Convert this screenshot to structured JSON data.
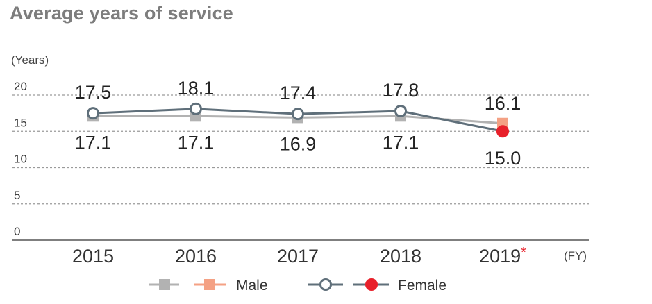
{
  "chart_data": {
    "type": "line",
    "title": "Average years of service",
    "ylabel": "(Years)",
    "xlabel": "(FY)",
    "yticks": [
      "20",
      "15",
      "10",
      "5",
      "0"
    ],
    "ylim": [
      0,
      20
    ],
    "categories": [
      "2015",
      "2016",
      "2017",
      "2018",
      "2019"
    ],
    "footnote_mark": "*",
    "footnote_mark_category": "2019",
    "grid": true,
    "legend_position": "bottom",
    "series": [
      {
        "name": "Male",
        "values": [
          17.1,
          17.1,
          16.9,
          17.1,
          16.1
        ],
        "labels": [
          "17.1",
          "17.1",
          "16.9",
          "17.1",
          "16.1"
        ],
        "color": "#b2b2b2",
        "highlight_color": "#f4a184",
        "marker": "square"
      },
      {
        "name": "Female",
        "values": [
          17.5,
          18.1,
          17.4,
          17.8,
          15.0
        ],
        "labels": [
          "17.5",
          "18.1",
          "17.4",
          "17.8",
          "15.0"
        ],
        "color": "#5f6f7a",
        "highlight_color": "#e8202a",
        "marker": "circle"
      }
    ],
    "colors": {
      "title": "#7d7d7d",
      "grid": "#9a9a9a",
      "asterisk": "#e8202a"
    }
  }
}
